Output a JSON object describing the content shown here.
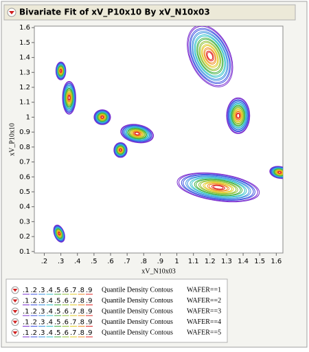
{
  "chart_data": {
    "type": "contour",
    "title": "Bivariate Fit of xV_P10x10 By xV_N10x03",
    "x_label": "xV_N10x03",
    "y_label": "xV_P10x10",
    "xlim": [
      0.14,
      1.64
    ],
    "xticks": [
      {
        "value": 0.2,
        "label": ".2"
      },
      {
        "value": 0.3,
        "label": ".3"
      },
      {
        "value": 0.4,
        "label": ".4"
      },
      {
        "value": 0.5,
        "label": ".5"
      },
      {
        "value": 0.6,
        "label": ".6"
      },
      {
        "value": 0.7,
        "label": ".7"
      },
      {
        "value": 0.8,
        "label": ".8"
      },
      {
        "value": 0.9,
        "label": ".9"
      },
      1,
      1.1,
      1.2,
      1.3,
      1.4,
      1.5,
      1.6
    ],
    "ylim": [
      0.09,
      1.61
    ],
    "yticks": [
      0.1,
      0.2,
      0.3,
      0.4,
      0.5,
      0.6,
      0.7,
      0.8,
      0.9,
      1,
      1.1,
      1.2,
      1.3,
      1.4,
      1.5,
      1.6
    ],
    "levels": [
      {
        "value": 0.1,
        "label": ".1"
      },
      {
        "value": 0.2,
        "label": ".2"
      },
      {
        "value": 0.3,
        "label": ".3"
      },
      {
        "value": 0.4,
        "label": ".4"
      },
      {
        "value": 0.5,
        "label": ".5"
      },
      {
        "value": 0.6,
        "label": ".6"
      },
      {
        "value": 0.7,
        "label": ".7"
      },
      {
        "value": 0.8,
        "label": ".8"
      },
      {
        "value": 0.9,
        "label": ".9"
      }
    ],
    "level_colors": [
      "#7a2fd0",
      "#3a4fe0",
      "#3a8fe0",
      "#30c0c8",
      "#40b040",
      "#90c030",
      "#e0c820",
      "#f08c20",
      "#e02020"
    ],
    "contour_label": "Quantile Density Contous",
    "wafers": [
      "WAFER==1",
      "WAFER==2",
      "WAFER==3",
      "WAFER==4",
      "WAFER==5"
    ],
    "clusters": [
      {
        "x": 0.3,
        "y": 1.31,
        "rx": 0.03,
        "ry": 0.06,
        "angle": 0
      },
      {
        "x": 0.35,
        "y": 1.13,
        "rx": 0.04,
        "ry": 0.11,
        "angle": 0
      },
      {
        "x": 0.29,
        "y": 0.22,
        "rx": 0.03,
        "ry": 0.06,
        "angle": 20
      },
      {
        "x": 0.55,
        "y": 1.0,
        "rx": 0.05,
        "ry": 0.05,
        "angle": 0
      },
      {
        "x": 0.76,
        "y": 0.89,
        "rx": 0.1,
        "ry": 0.06,
        "angle": -10
      },
      {
        "x": 0.66,
        "y": 0.78,
        "rx": 0.04,
        "ry": 0.05,
        "angle": 0
      },
      {
        "x": 1.2,
        "y": 1.41,
        "rx": 0.12,
        "ry": 0.22,
        "angle": 25
      },
      {
        "x": 1.37,
        "y": 1.01,
        "rx": 0.07,
        "ry": 0.12,
        "angle": 0
      },
      {
        "x": 1.25,
        "y": 0.53,
        "rx": 0.25,
        "ry": 0.09,
        "angle": -8
      },
      {
        "x": 1.62,
        "y": 0.63,
        "rx": 0.06,
        "ry": 0.04,
        "angle": -10
      }
    ]
  }
}
